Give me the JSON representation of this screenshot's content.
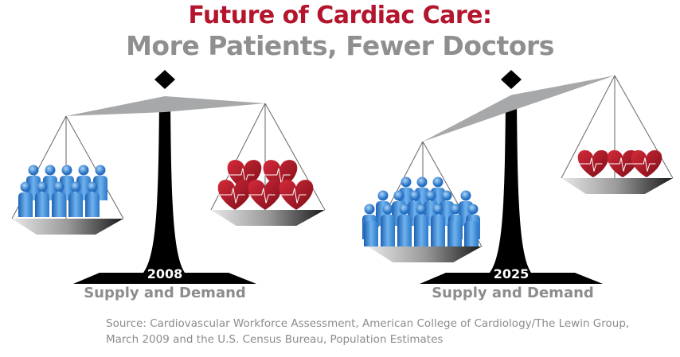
{
  "title": "Future of Cardiac Care:",
  "subtitle": "More Patients, Fewer Doctors",
  "scales": [
    {
      "year": "2008",
      "label": "Supply and Demand",
      "patients_icons": 10,
      "hearts_icons": 5,
      "tilt": "balanced"
    },
    {
      "year": "2025",
      "label": "Supply and Demand",
      "patients_icons": 23,
      "hearts_icons": 3,
      "tilt": "patients-heavier"
    }
  ],
  "source": {
    "line1": "Source: Cardiovascular Workforce Assessment, American College of Cardiology/The Lewin Group,",
    "line2": "March 2009 and the U.S. Census Bureau, Population Estimates"
  },
  "colors": {
    "title_red": "#b3152d",
    "gray_text": "#8c8c8c",
    "people_blue": "#3a8ad6",
    "heart_red": "#b51a2a"
  }
}
